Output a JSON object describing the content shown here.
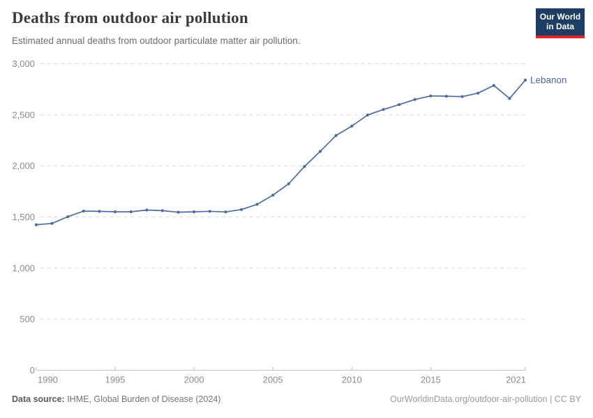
{
  "header": {
    "title": "Deaths from outdoor air pollution",
    "subtitle": "Estimated annual deaths from outdoor particulate matter air pollution."
  },
  "logo": {
    "line1": "Our World",
    "line2": "in Data",
    "bg_color": "#1d3d63",
    "accent_color": "#e2262b"
  },
  "chart_data": {
    "type": "line",
    "title": "Deaths from outdoor air pollution",
    "xlabel": "",
    "ylabel": "",
    "x": [
      1990,
      1991,
      1992,
      1993,
      1994,
      1995,
      1996,
      1997,
      1998,
      1999,
      2000,
      2001,
      2002,
      2003,
      2004,
      2005,
      2006,
      2007,
      2008,
      2009,
      2010,
      2011,
      2012,
      2013,
      2014,
      2015,
      2016,
      2017,
      2018,
      2019,
      2020,
      2021
    ],
    "series": [
      {
        "name": "Lebanon",
        "color": "#4c6ba3",
        "values": [
          1424,
          1437,
          1503,
          1558,
          1555,
          1551,
          1551,
          1568,
          1562,
          1547,
          1551,
          1556,
          1550,
          1573,
          1624,
          1714,
          1825,
          1994,
          2142,
          2298,
          2390,
          2498,
          2552,
          2600,
          2650,
          2685,
          2682,
          2678,
          2712,
          2788,
          2660,
          2840
        ]
      }
    ],
    "ylim": [
      0,
      3000
    ],
    "yticks": [
      0,
      500,
      1000,
      1500,
      2000,
      2500,
      3000
    ],
    "ytick_labels": [
      "0",
      "500",
      "1,000",
      "1,500",
      "2,000",
      "2,500",
      "3,000"
    ],
    "xticks": [
      1990,
      1995,
      2000,
      2005,
      2010,
      2015,
      2021
    ],
    "xtick_labels": [
      "1990",
      "1995",
      "2000",
      "2005",
      "2010",
      "2015",
      "2021"
    ],
    "grid": "horizontal-dashed",
    "legend_position": "end-of-line-label",
    "colors": {
      "gridline": "#dedede",
      "axis_line": "#c8c8c8",
      "tick_mark": "#b3b3b3",
      "tick_label": "#8a8a8a"
    }
  },
  "footer": {
    "source_label": "Data source:",
    "source_text": " IHME, Global Burden of Disease (2024)",
    "credit": "OurWorldinData.org/outdoor-air-pollution | CC BY"
  }
}
